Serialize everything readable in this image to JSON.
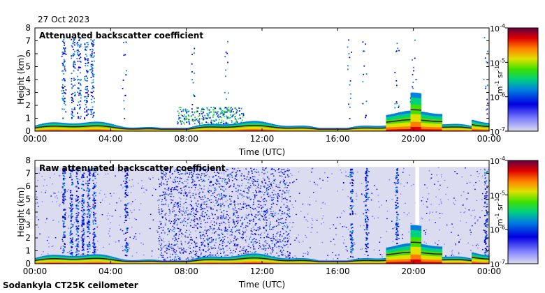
{
  "date": "27 Oct 2023",
  "instrument": "Sodankyla CT25K ceilometer",
  "chart_data": [
    {
      "type": "heatmap",
      "title": "Attenuated backscatter coefficient",
      "xlabel": "Time (UTC)",
      "ylabel": "Height (km)",
      "xlim_hours": [
        0,
        24
      ],
      "ylim_km": [
        0,
        8
      ],
      "x_ticks": [
        "00:00",
        "04:00",
        "08:00",
        "12:00",
        "16:00",
        "20:00",
        "00:00"
      ],
      "y_ticks": [
        "0",
        "1",
        "2",
        "3",
        "4",
        "5",
        "6",
        "7",
        "8"
      ],
      "colorbar": {
        "scale": "log",
        "range": [
          1e-07,
          0.0001
        ],
        "ticks": [
          {
            "base": "10",
            "exp": "-7"
          },
          {
            "base": "10",
            "exp": "-6"
          },
          {
            "base": "10",
            "exp": "-5"
          },
          {
            "base": "10",
            "exp": "-4"
          }
        ],
        "unit_parts": {
          "a": "m",
          "a_exp": "-1",
          "b": "sr",
          "b_exp": "-1"
        }
      },
      "features": {
        "boundary_layer_top_km": 0.45,
        "low_cloud_layer_km": [
          0.2,
          1.2
        ],
        "cloud_streaks_hours": [
          1.5,
          2.0,
          2.3,
          2.7,
          3.0,
          4.7,
          8.3,
          10.1,
          16.6,
          17.4,
          19.1,
          20.0,
          23.8
        ],
        "precip_hours": [
          1.5,
          3.2
        ],
        "cloud_bump_hours": [
          19.8,
          20.3
        ],
        "cloud_bump_top_km": 2.8
      }
    },
    {
      "type": "heatmap",
      "title": "Raw attenuated backscatter coefficient",
      "xlabel": "Time (UTC)",
      "ylabel": "Height (km)",
      "xlim_hours": [
        0,
        24
      ],
      "ylim_km": [
        0,
        8
      ],
      "x_ticks": [
        "00:00",
        "04:00",
        "08:00",
        "12:00",
        "16:00",
        "20:00",
        "00:00"
      ],
      "y_ticks": [
        "0",
        "1",
        "2",
        "3",
        "4",
        "5",
        "6",
        "7",
        "8"
      ],
      "colorbar": {
        "scale": "log",
        "range": [
          1e-07,
          0.0001
        ],
        "ticks": [
          {
            "base": "10",
            "exp": "-7"
          },
          {
            "base": "10",
            "exp": "-6"
          },
          {
            "base": "10",
            "exp": "-5"
          },
          {
            "base": "10",
            "exp": "-4"
          }
        ],
        "unit_parts": {
          "a": "m",
          "a_exp": "-1",
          "b": "sr",
          "b_exp": "-1"
        }
      },
      "features": {
        "data_top_km": 7.5,
        "noise_band_hours": [
          6.5,
          13.5
        ],
        "vertical_streaks_hours": [
          1.5,
          1.9,
          2.2,
          2.5,
          2.8,
          3.1,
          4.8,
          16.7,
          17.5,
          19.1,
          23.8
        ],
        "gap_hours": [
          20.1,
          20.3
        ]
      }
    }
  ]
}
